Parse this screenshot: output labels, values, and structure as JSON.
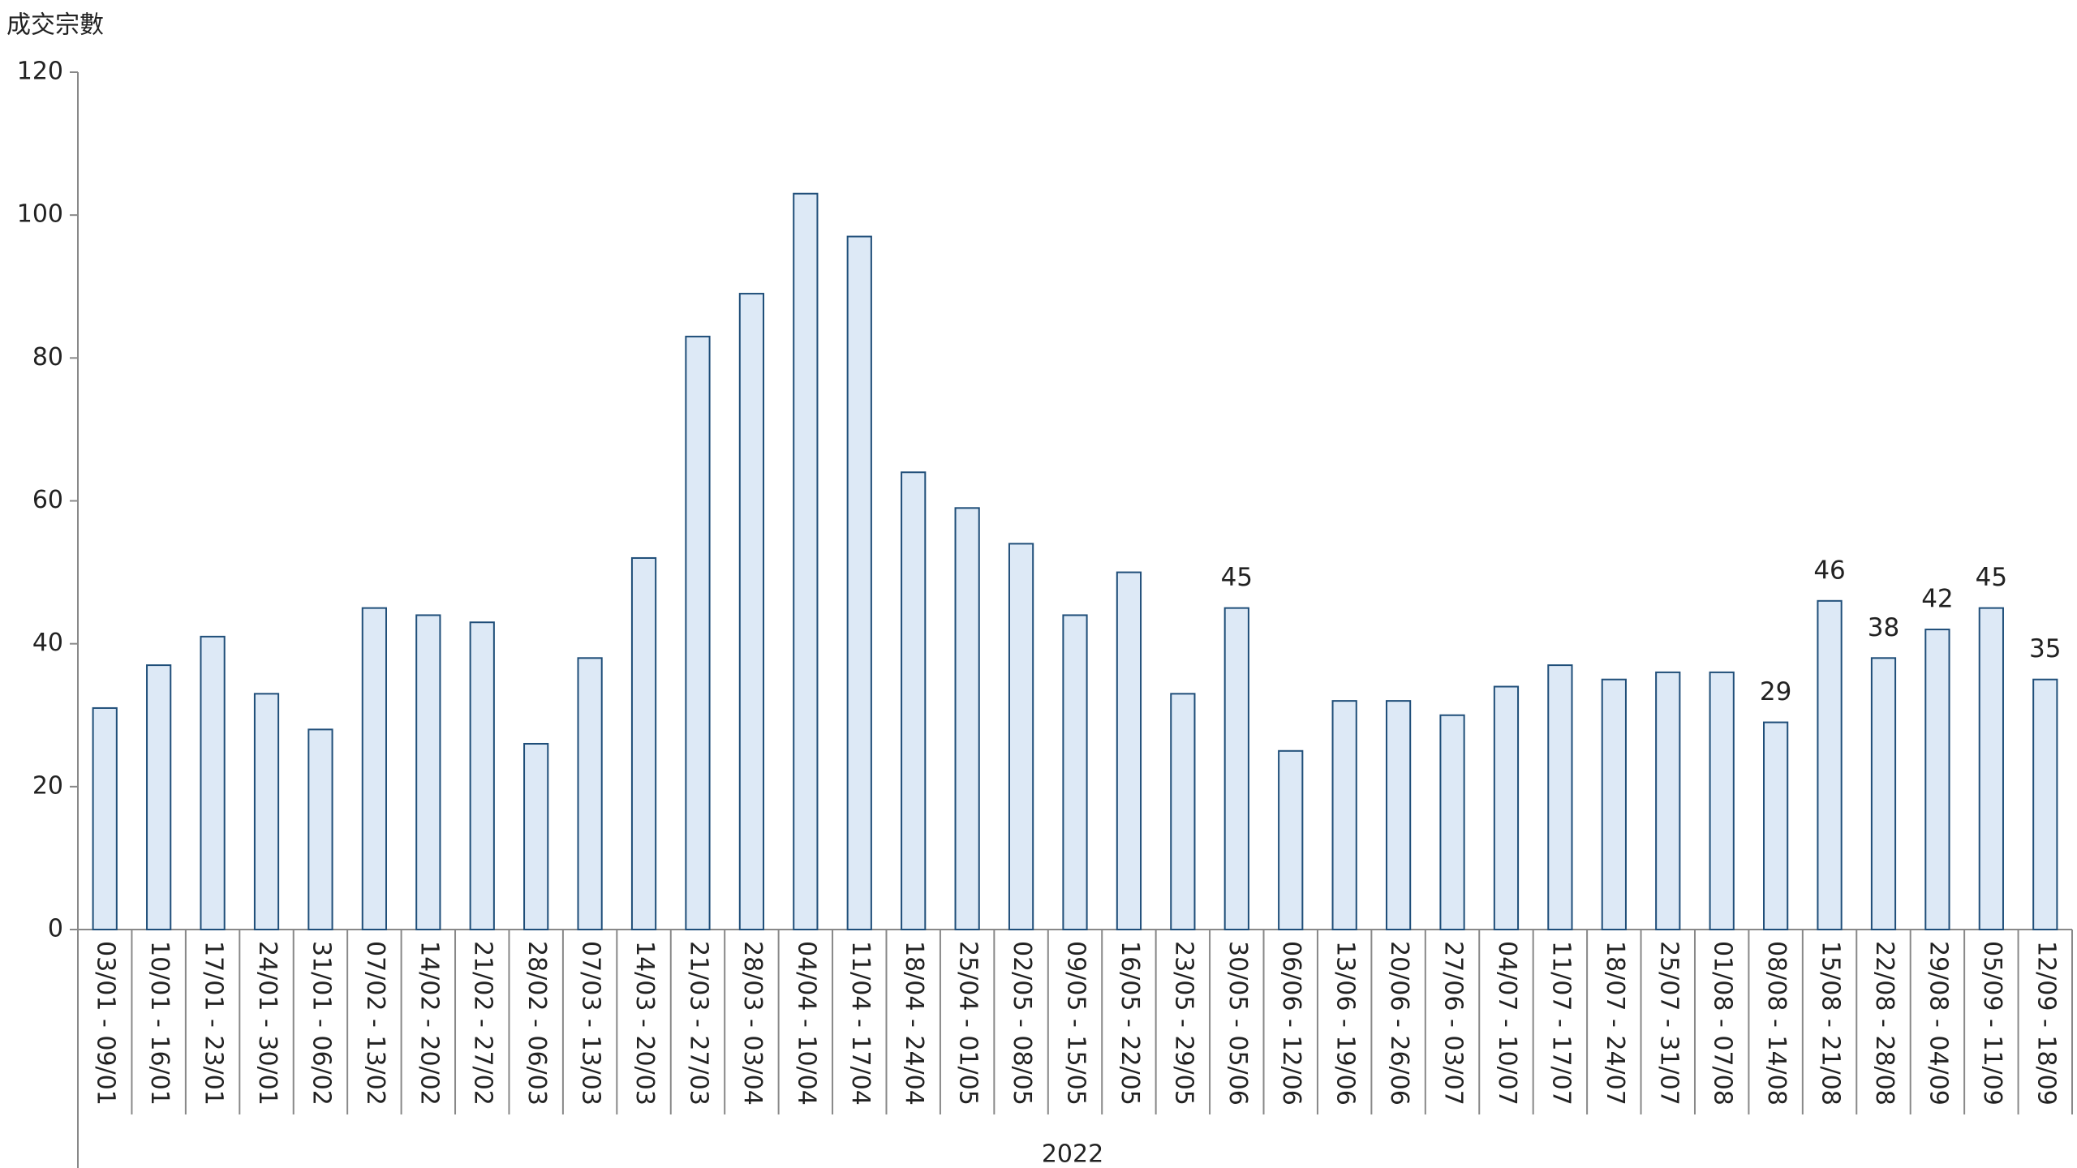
{
  "chart_data": {
    "type": "bar",
    "y_label": "成交宗數",
    "x_group_label": "2022",
    "categories": [
      "03/01 - 09/01",
      "10/01 - 16/01",
      "17/01 - 23/01",
      "24/01 - 30/01",
      "31/01 - 06/02",
      "07/02 - 13/02",
      "14/02 - 20/02",
      "21/02 - 27/02",
      "28/02 - 06/03",
      "07/03 - 13/03",
      "14/03 - 20/03",
      "21/03 - 27/03",
      "28/03 - 03/04",
      "04/04 - 10/04",
      "11/04 - 17/04",
      "18/04 - 24/04",
      "25/04 - 01/05",
      "02/05 - 08/05",
      "09/05 - 15/05",
      "16/05 - 22/05",
      "23/05 - 29/05",
      "30/05 - 05/06",
      "06/06 - 12/06",
      "13/06 - 19/06",
      "20/06 - 26/06",
      "27/06 - 03/07",
      "04/07 - 10/07",
      "11/07 - 17/07",
      "18/07 - 24/07",
      "25/07 - 31/07",
      "01/08 - 07/08",
      "08/08 - 14/08",
      "15/08 - 21/08",
      "22/08 - 28/08",
      "29/08 - 04/09",
      "05/09 - 11/09",
      "12/09 - 18/09"
    ],
    "values": [
      31,
      37,
      41,
      33,
      28,
      45,
      44,
      43,
      26,
      38,
      52,
      83,
      89,
      103,
      97,
      64,
      59,
      54,
      44,
      50,
      33,
      45,
      25,
      32,
      32,
      30,
      34,
      37,
      35,
      36,
      36,
      29,
      46,
      38,
      42,
      45,
      35
    ],
    "value_labels": [
      null,
      null,
      null,
      null,
      null,
      null,
      null,
      null,
      null,
      null,
      null,
      null,
      null,
      null,
      null,
      null,
      null,
      null,
      null,
      null,
      null,
      "45",
      null,
      null,
      null,
      null,
      null,
      null,
      null,
      null,
      null,
      "29",
      "46",
      "38",
      "42",
      "45",
      "35"
    ],
    "color": "#dde9f6",
    "edge_color": "#1f4e79",
    "ylim": [
      0,
      120
    ],
    "yticks": [
      0,
      20,
      40,
      60,
      80,
      100,
      120
    ],
    "grid": false
  }
}
